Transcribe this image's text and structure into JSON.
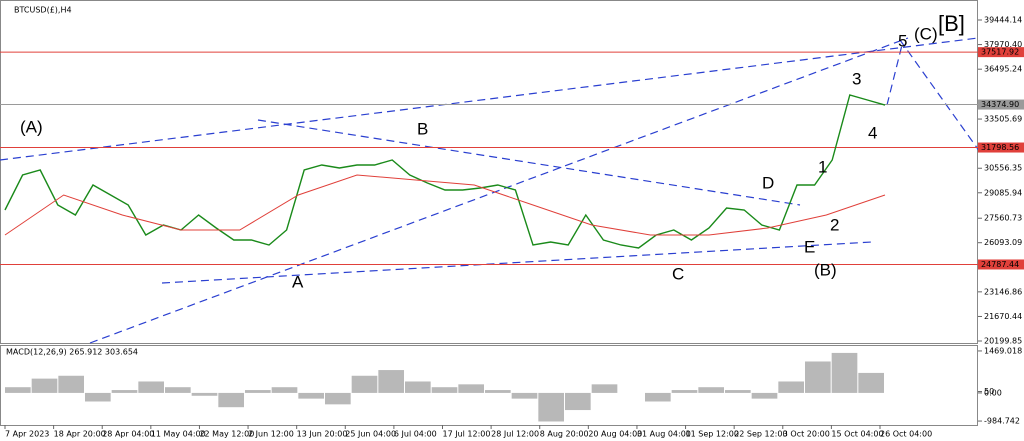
{
  "chart_data": {
    "type": "line",
    "title": "BTCUSD(£),H4",
    "x_labels": [
      "7 Apr 2023",
      "18 Apr 20:00",
      "28 Apr 04:00",
      "11 May 04:00",
      "22 May 12:00",
      "2 Jun 12:00",
      "13 Jun 20:00",
      "25 Jun 04:00",
      "6 Jul 04:00",
      "17 Jul 12:00",
      "28 Jul 12:00",
      "8 Aug 20:00",
      "20 Aug 04:00",
      "31 Aug 04:00",
      "11 Sep 12:00",
      "22 Sep 12:00",
      "3 Oct 20:00",
      "15 Oct 04:00",
      "26 Oct 04:00"
    ],
    "ylim": [
      20080,
      40523
    ],
    "yticks": [
      39444.14,
      {
        "value": 37970.4,
        "label": "37970.40"
      },
      36495.24,
      33505.69,
      30556.35,
      29085.94,
      27560.73,
      26093.09,
      23146.86,
      21670.44,
      20199.85
    ],
    "hlines": [
      {
        "value": 37517.92,
        "color": "#e0403a"
      },
      {
        "value": 34374.9,
        "label": "34374.90",
        "color": "#9a9a9a"
      },
      {
        "value": 31798.56,
        "color": "#e0403a"
      },
      {
        "value": 24787.44,
        "color": "#e0403a"
      }
    ],
    "series": [
      {
        "name": "price",
        "color": "#1a8a1a",
        "values": [
          28054,
          30152,
          30452,
          28354,
          27755,
          29553,
          28954,
          28354,
          26555,
          27155,
          26855,
          27755,
          26975,
          26255,
          26255,
          25955,
          26855,
          30452,
          30752,
          30572,
          30752,
          30752,
          31051,
          30152,
          29673,
          29253,
          29253,
          29373,
          29553,
          29253,
          25955,
          26135,
          25955,
          27755,
          26255,
          25955,
          25775,
          26555,
          26855,
          26255,
          26975,
          28174,
          28054,
          27155,
          26855,
          29553,
          29553,
          31051,
          34948,
          34648,
          34344
        ]
      },
      {
        "name": "ma",
        "color": "#e0403a",
        "values": [
          26555,
          28954,
          27755,
          26855,
          26855,
          28954,
          30152,
          29853,
          29553,
          28354,
          27155,
          26555,
          26555,
          26975,
          27755,
          28954
        ]
      }
    ],
    "annotations": [
      {
        "text": "(A)",
        "color": "#2a3fd0"
      },
      {
        "text": "B",
        "color": "#2a3fd0"
      },
      {
        "text": "A",
        "color": "#2a3fd0"
      },
      {
        "text": "C",
        "color": "#2a3fd0"
      },
      {
        "text": "D",
        "color": "#2a3fd0"
      },
      {
        "text": "E",
        "color": "#2a3fd0"
      },
      {
        "text": "(B)",
        "color": "#e0202a"
      },
      {
        "text": "1",
        "color": "#2a3fd0"
      },
      {
        "text": "2",
        "color": "#2a3fd0"
      },
      {
        "text": "3",
        "color": "#2a3fd0"
      },
      {
        "text": "4",
        "color": "#2a3fd0"
      },
      {
        "text": "5",
        "color": "#2a3fd0"
      },
      {
        "text": "(C)",
        "color": "#e0202a"
      },
      {
        "text": "[B]",
        "color": "#000000"
      }
    ],
    "macd": {
      "title": "MACD(12,26,9) 265.912 303.654",
      "color": "#b8b8b8",
      "ylim": [
        -1123,
        1642
      ],
      "yticks": [
        1469.018,
        50,
        {
          "value": 0,
          "label": "0.00"
        },
        -984.742
      ],
      "values": [
        200,
        500,
        600,
        -300,
        100,
        400,
        200,
        -100,
        -500,
        100,
        200,
        -200,
        -400,
        600,
        800,
        400,
        200,
        300,
        100,
        -200,
        -1000,
        -600,
        300,
        0,
        -300,
        100,
        200,
        100,
        -200,
        400,
        1100,
        1400,
        700
      ]
    }
  }
}
